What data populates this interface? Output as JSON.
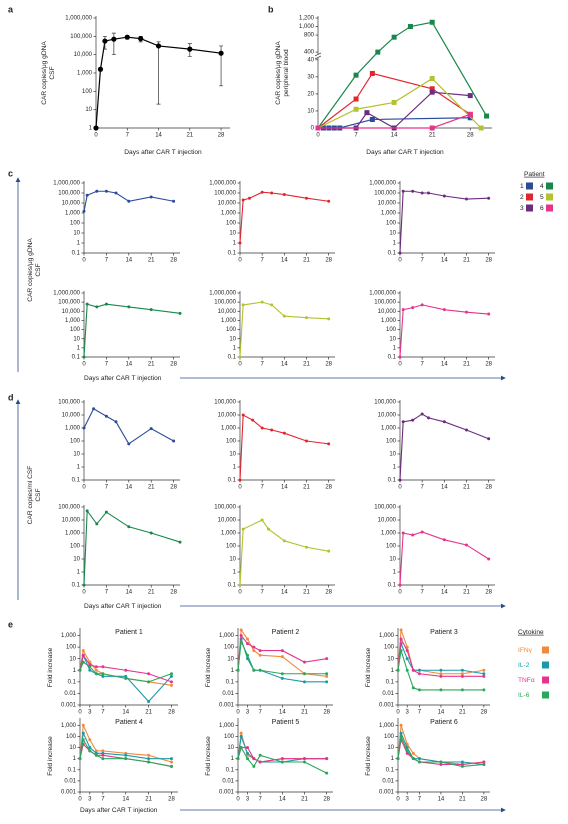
{
  "chart_data": [
    {
      "type": "line",
      "panel_label": "a",
      "xlabel": "Days after CAR T injection",
      "ylabel": [
        "CAR copies/μg gDNA",
        "CSF"
      ],
      "log_y": true,
      "xlim": [
        0,
        30
      ],
      "xticks": [
        0,
        7,
        14,
        21,
        28
      ],
      "ylim": [
        1,
        1000000
      ],
      "yticks": [
        1,
        10,
        100,
        {
          "value": 1000,
          "label": "1,000"
        },
        {
          "value": 10000,
          "label": "10,000"
        },
        {
          "value": 100000,
          "label": "100,000"
        },
        {
          "value": 1000000,
          "label": "1,000,000"
        }
      ],
      "x": [
        0,
        1,
        2,
        4,
        7,
        10,
        14,
        21,
        28
      ],
      "series": [
        {
          "color": "#000000",
          "values": [
            1,
            1600,
            55000,
            70000,
            90000,
            75000,
            30000,
            20000,
            12000
          ],
          "error_low": [
            null,
            null,
            20000,
            10000,
            70000,
            50000,
            20,
            8000,
            200
          ],
          "error_high": [
            null,
            null,
            100000,
            150000,
            110000,
            100000,
            50000,
            40000,
            30000
          ]
        }
      ]
    },
    {
      "type": "line",
      "panel_label": "b",
      "xlabel": "Days after CAR T injection",
      "ylabel": [
        "CAR copies/μg gDNA",
        "peripheral blood"
      ],
      "marker": "square",
      "xlim": [
        0,
        32
      ],
      "xticks": [
        0,
        7,
        14,
        21,
        28
      ],
      "ylim": [
        0,
        1200
      ],
      "ybreak": [
        40,
        400
      ],
      "yticks": [
        0,
        10,
        20,
        30,
        40,
        400,
        800,
        {
          "value": 1000,
          "label": "1,000"
        },
        {
          "value": 1200,
          "label": "1,200"
        }
      ],
      "series": [
        {
          "color": "#2b4c9b",
          "x": [
            0,
            1,
            2,
            3,
            4,
            10,
            28
          ],
          "values": [
            0,
            0,
            0,
            0,
            0,
            5,
            6
          ]
        },
        {
          "color": "#e2262e",
          "x": [
            0,
            7,
            10,
            21,
            28
          ],
          "values": [
            0,
            17,
            32,
            23,
            8
          ]
        },
        {
          "color": "#6b2c7e",
          "x": [
            0,
            7,
            9,
            14,
            21,
            28
          ],
          "values": [
            0,
            0,
            9,
            0,
            21,
            19
          ]
        },
        {
          "color": "#17884a",
          "x": [
            0,
            7,
            11,
            14,
            17,
            21,
            31
          ],
          "values": [
            0,
            31,
            400,
            750,
            1000,
            1100,
            7
          ]
        },
        {
          "color": "#b4c230",
          "x": [
            0,
            7,
            14,
            21,
            30
          ],
          "values": [
            0,
            11,
            15,
            29,
            0
          ]
        },
        {
          "color": "#e6338c",
          "x": [
            0,
            21,
            28
          ],
          "values": [
            0,
            0,
            8
          ]
        }
      ]
    },
    {
      "type": "line",
      "panel_label": "c",
      "xlabel": "Days after CAR T injection",
      "ylabel": [
        "CAR copies/μg gDNA",
        "CSF"
      ],
      "log_y": true,
      "xlim": [
        0,
        30
      ],
      "xticks": [
        0,
        7,
        14,
        21,
        28
      ],
      "ylim": [
        0.1,
        1000000
      ],
      "yticks": [
        0.1,
        1,
        10,
        100,
        {
          "value": 1000,
          "label": "1,000"
        },
        {
          "value": 10000,
          "label": "10,000"
        },
        {
          "value": 100000,
          "label": "100,000"
        },
        {
          "value": 1000000,
          "label": "1,000,000"
        }
      ],
      "legend_title": "Patient",
      "legend": [
        {
          "name": "1",
          "color": "#2b4c9b"
        },
        {
          "name": "2",
          "color": "#e2262e"
        },
        {
          "name": "3",
          "color": "#6b2c7e"
        },
        {
          "name": "4",
          "color": "#17884a"
        },
        {
          "name": "5",
          "color": "#b4c230"
        },
        {
          "name": "6",
          "color": "#e6338c"
        }
      ],
      "subplots": [
        {
          "x": [
            0,
            1,
            4,
            7,
            10,
            14,
            21,
            28
          ],
          "series": [
            {
              "values": [
                1500,
                60000,
                150000,
                150000,
                100000,
                15000,
                40000,
                15000
              ]
            }
          ]
        },
        {
          "x": [
            0,
            1,
            3,
            7,
            10,
            14,
            21,
            28
          ],
          "series": [
            {
              "values": [
                1,
                20000,
                30000,
                120000,
                100000,
                70000,
                30000,
                15000
              ]
            }
          ]
        },
        {
          "x": [
            0,
            1,
            4,
            7,
            9,
            14,
            21,
            28
          ],
          "series": [
            {
              "values": [
                0.1,
                150000,
                150000,
                100000,
                100000,
                50000,
                25000,
                30000
              ]
            }
          ]
        },
        {
          "x": [
            0,
            1,
            4,
            7,
            14,
            21,
            30
          ],
          "series": [
            {
              "values": [
                0.1,
                60000,
                30000,
                60000,
                30000,
                15000,
                6000
              ]
            }
          ]
        },
        {
          "x": [
            0,
            1,
            7,
            10,
            14,
            21,
            28
          ],
          "series": [
            {
              "values": [
                0.1,
                50000,
                100000,
                50000,
                3000,
                2000,
                1500
              ]
            }
          ]
        },
        {
          "x": [
            0,
            1,
            4,
            7,
            14,
            21,
            28
          ],
          "series": [
            {
              "values": [
                0.1,
                15000,
                25000,
                50000,
                15000,
                8000,
                5000
              ]
            }
          ]
        }
      ]
    },
    {
      "type": "line",
      "panel_label": "d",
      "xlabel": "Days after CAR T injection",
      "ylabel": [
        "CAR copies/ml CSF",
        "CSF"
      ],
      "log_y": true,
      "xlim": [
        0,
        30
      ],
      "xticks": [
        0,
        7,
        14,
        21,
        28
      ],
      "ylim": [
        0.1,
        100000
      ],
      "yticks": [
        0.1,
        1,
        10,
        100,
        {
          "value": 1000,
          "label": "1,000"
        },
        {
          "value": 10000,
          "label": "10,000"
        },
        {
          "value": 100000,
          "label": "100,000"
        }
      ],
      "subplots": [
        {
          "x": [
            0,
            3,
            7,
            10,
            14,
            21,
            28
          ],
          "series": [
            {
              "color": "#2b4c9b",
              "values": [
                1000,
                30000,
                8000,
                3000,
                60,
                900,
                100
              ]
            }
          ]
        },
        {
          "x": [
            0,
            1,
            4,
            7,
            10,
            14,
            21,
            28
          ],
          "series": [
            {
              "color": "#e2262e",
              "values": [
                0.1,
                10000,
                4000,
                1000,
                700,
                400,
                100,
                60
              ]
            }
          ]
        },
        {
          "x": [
            0,
            1,
            4,
            7,
            9,
            14,
            21,
            28
          ],
          "series": [
            {
              "color": "#6b2c7e",
              "values": [
                0.1,
                3000,
                4000,
                12000,
                6000,
                3000,
                700,
                150
              ]
            }
          ]
        },
        {
          "x": [
            0,
            1,
            4,
            7,
            14,
            21,
            30
          ],
          "series": [
            {
              "color": "#17884a",
              "values": [
                0.1,
                50000,
                5000,
                40000,
                3000,
                1000,
                200
              ]
            }
          ]
        },
        {
          "x": [
            0,
            1,
            7,
            9,
            14,
            21,
            28
          ],
          "series": [
            {
              "color": "#b4c230",
              "values": [
                0.1,
                2000,
                10000,
                2000,
                250,
                80,
                40
              ]
            }
          ]
        },
        {
          "x": [
            0,
            1,
            4,
            7,
            14,
            21,
            28
          ],
          "series": [
            {
              "color": "#e6338c",
              "values": [
                0.1,
                1000,
                700,
                1200,
                300,
                120,
                10
              ]
            }
          ]
        }
      ]
    },
    {
      "type": "line",
      "panel_label": "e",
      "xlabel": "Days after CAR T injection",
      "ylabel": "Fold increase",
      "log_y": true,
      "xlim": [
        0,
        30
      ],
      "xticks": [
        0,
        3,
        7,
        14,
        21,
        28
      ],
      "ylim": [
        0.001,
        3000
      ],
      "yticks": [
        0.001,
        0.01,
        0.1,
        1,
        10,
        100,
        {
          "value": 1000,
          "label": "1,000"
        }
      ],
      "legend_title": "Cytokine",
      "legend": [
        {
          "name": "IFNγ",
          "color": "#f08a3c"
        },
        {
          "name": "IL-2",
          "color": "#1a9aa8"
        },
        {
          "name": "TNFα",
          "color": "#e6348e"
        },
        {
          "name": "IL-6",
          "color": "#2aa75a"
        }
      ],
      "x": [
        0,
        1,
        3,
        5,
        7,
        14,
        21,
        28
      ],
      "subplots": [
        {
          "title": "Patient 1",
          "series": [
            {
              "values": [
                1,
                50,
                5,
                1,
                0.5,
                0.2,
                0.1,
                0.05
              ]
            },
            {
              "values": [
                1,
                20,
                1,
                0.5,
                0.3,
                0.3,
                0.002,
                0.3
              ]
            },
            {
              "values": [
                1,
                20,
                3,
                2,
                2,
                1,
                0.5,
                0.1
              ]
            },
            {
              "values": [
                1,
                5,
                2,
                0.5,
                0.5,
                0.2,
                0.1,
                0.5
              ]
            }
          ]
        },
        {
          "title": "Patient 2",
          "series": [
            {
              "values": [
                1,
                3000,
                500,
                50,
                20,
                15,
                0.5,
                0.3
              ]
            },
            {
              "values": [
                1,
                500,
                10,
                1,
                1,
                0.2,
                0.1,
                0.1
              ]
            },
            {
              "values": [
                1,
                1000,
                200,
                100,
                50,
                50,
                5,
                10
              ]
            },
            {
              "values": [
                1,
                300,
                20,
                1,
                1,
                0.5,
                0.5,
                0.5
              ]
            }
          ]
        },
        {
          "title": "Patient 3",
          "series": [
            {
              "values": [
                1,
                3000,
                100,
                1,
                1,
                0.5,
                0.5,
                1
              ]
            },
            {
              "values": [
                1,
                200,
                10,
                1,
                1,
                1,
                1,
                0.5
              ]
            },
            {
              "values": [
                1,
                500,
                50,
                1,
                0.5,
                0.3,
                0.3,
                0.3
              ]
            },
            {
              "values": [
                1,
                50,
                1,
                0.03,
                0.02,
                0.02,
                0.02,
                0.02
              ]
            }
          ]
        },
        {
          "title": "Patient 4",
          "series": [
            {
              "values": [
                1,
                1000,
                50,
                5,
                5,
                3,
                2,
                0.5
              ]
            },
            {
              "values": [
                1,
                200,
                10,
                3,
                3,
                2,
                1,
                1
              ]
            },
            {
              "values": [
                1,
                20,
                5,
                2,
                2,
                1,
                0.5,
                0.2
              ]
            },
            {
              "values": [
                1,
                50,
                5,
                2,
                1,
                1,
                0.5,
                0.2
              ]
            }
          ]
        },
        {
          "title": "Patient 5",
          "series": [
            {
              "values": [
                1,
                200,
                2,
                1,
                0.5,
                1,
                1,
                1
              ]
            },
            {
              "values": [
                1,
                100,
                3,
                1,
                0.5,
                0.5,
                1,
                1
              ]
            },
            {
              "values": [
                1,
                10,
                10,
                1,
                0.5,
                1,
                1,
                1
              ]
            },
            {
              "values": [
                1,
                10,
                1,
                0.2,
                2,
                0.5,
                0.5,
                0.05
              ]
            }
          ]
        },
        {
          "title": "Patient 6",
          "series": [
            {
              "values": [
                1,
                1000,
                20,
                3,
                1,
                0.5,
                0.3,
                0.5
              ]
            },
            {
              "values": [
                1,
                200,
                10,
                1,
                1,
                0.5,
                0.5,
                0.3
              ]
            },
            {
              "values": [
                1,
                50,
                3,
                1,
                0.5,
                0.3,
                0.3,
                0.5
              ]
            },
            {
              "values": [
                1,
                100,
                5,
                1,
                0.5,
                0.5,
                0.2,
                0.3
              ]
            }
          ]
        }
      ]
    }
  ]
}
